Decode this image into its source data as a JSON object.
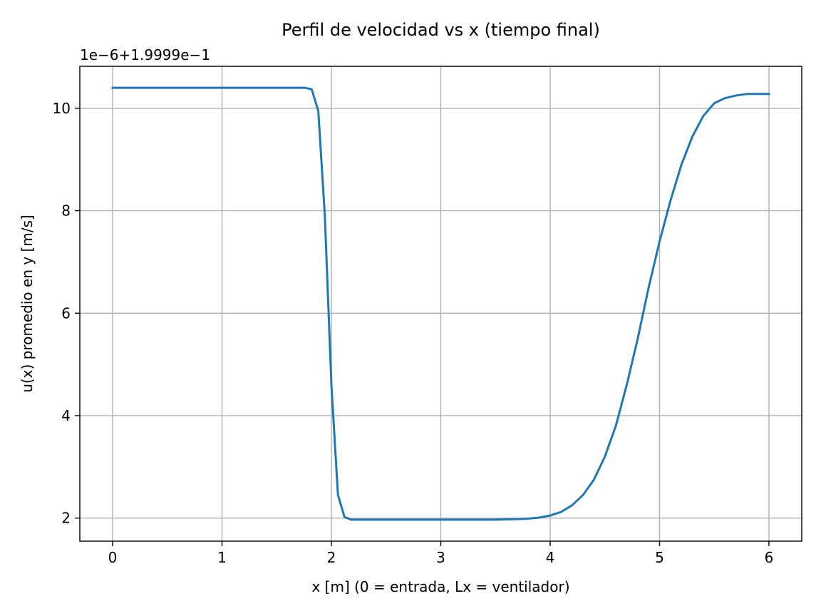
{
  "chart_data": {
    "type": "line",
    "title": "Perfil de velocidad vs x (tiempo final)",
    "xlabel": "x [m] (0 = entrada, Lx = ventilador)",
    "ylabel": "u(x) promedio en y [m/s]",
    "offset_text": "1e−6+1.9999e−1",
    "xlim": [
      -0.3,
      6.3
    ],
    "ylim": [
      1.55,
      10.82
    ],
    "xticks": [
      0,
      1,
      2,
      3,
      4,
      5,
      6
    ],
    "xtick_labels": [
      "0",
      "1",
      "2",
      "3",
      "4",
      "5",
      "6"
    ],
    "yticks": [
      2,
      4,
      6,
      8,
      10
    ],
    "ytick_labels": [
      "2",
      "4",
      "6",
      "8",
      "10"
    ],
    "grid": true,
    "series": [
      {
        "color": "#1f77b4",
        "x": [
          0,
          0.2,
          0.4,
          0.6,
          0.8,
          1.0,
          1.2,
          1.4,
          1.6,
          1.76,
          1.82,
          1.88,
          1.94,
          2.0,
          2.06,
          2.12,
          2.18,
          2.3,
          2.5,
          2.7,
          2.9,
          3.1,
          3.3,
          3.5,
          3.7,
          3.8,
          3.9,
          4.0,
          4.1,
          4.2,
          4.3,
          4.4,
          4.5,
          4.6,
          4.7,
          4.8,
          4.9,
          5.0,
          5.1,
          5.2,
          5.3,
          5.4,
          5.5,
          5.6,
          5.7,
          5.8,
          5.9,
          5.95,
          6.0
        ],
        "y": [
          10.4,
          10.4,
          10.4,
          10.4,
          10.4,
          10.4,
          10.4,
          10.4,
          10.4,
          10.4,
          10.37,
          9.95,
          7.9,
          4.6,
          2.45,
          2.02,
          1.97,
          1.97,
          1.97,
          1.97,
          1.97,
          1.97,
          1.97,
          1.97,
          1.98,
          1.99,
          2.01,
          2.05,
          2.12,
          2.25,
          2.45,
          2.75,
          3.2,
          3.8,
          4.6,
          5.5,
          6.5,
          7.4,
          8.2,
          8.9,
          9.45,
          9.85,
          10.1,
          10.2,
          10.25,
          10.28,
          10.28,
          10.28,
          10.28
        ]
      }
    ]
  }
}
